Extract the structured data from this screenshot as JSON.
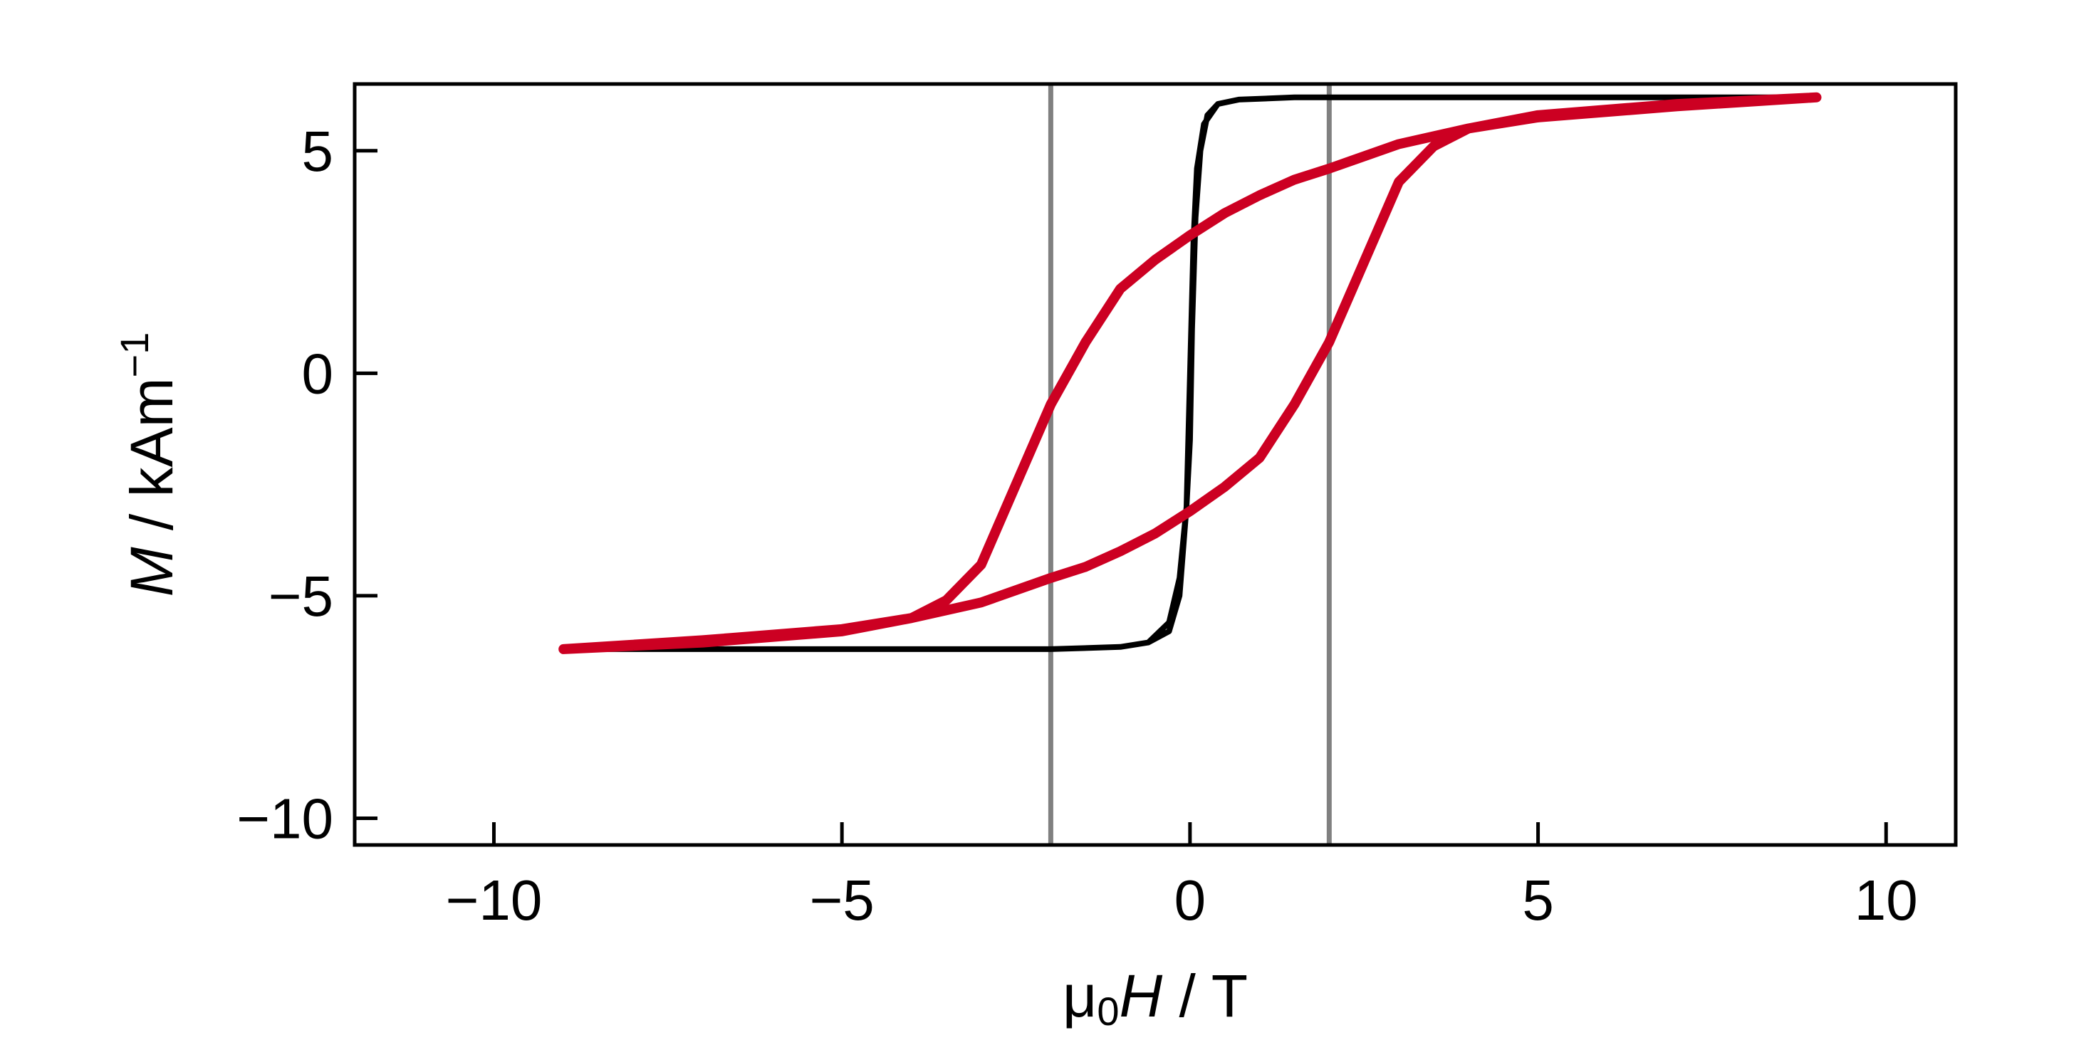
{
  "chart_data": {
    "type": "line",
    "xlabel": {
      "prefix": "μ",
      "sub": "0",
      "var": "H",
      "unit": "T"
    },
    "ylabel": {
      "var": "M",
      "unit": "kAm",
      "sup": "−1"
    },
    "xlim": [
      -12,
      11
    ],
    "ylim": [
      -10.6,
      6.5
    ],
    "xticks": [
      -10,
      -5,
      0,
      5,
      10
    ],
    "xtick_labels": [
      "−10",
      "−5",
      "0",
      "5",
      "10"
    ],
    "yticks": [
      -10,
      -5,
      0,
      5
    ],
    "ytick_labels": [
      "−10",
      "−5",
      "0",
      "5"
    ],
    "grid": false,
    "vlines": [
      {
        "x": -2,
        "color": "#808080"
      },
      {
        "x": 2,
        "color": "#808080"
      }
    ],
    "series": [
      {
        "color": "#000000",
        "x": [
          -9,
          -7,
          -5,
          -3,
          -2,
          -1,
          -0.6,
          -0.3,
          -0.15,
          -0.05,
          0,
          0.05,
          0.1,
          0.2,
          0.4,
          0.7,
          1.5,
          3,
          5,
          7,
          9,
          7,
          5,
          3,
          1.5,
          0.7,
          0.4,
          0.25,
          0.15,
          0.08,
          0.03,
          0,
          -0.05,
          -0.15,
          -0.3,
          -0.6,
          -1,
          -2,
          -3,
          -5,
          -7,
          -9
        ],
        "y": [
          -6.2,
          -6.2,
          -6.2,
          -6.2,
          -6.2,
          -6.15,
          -6.05,
          -5.8,
          -5.0,
          -3.0,
          0.0,
          3.0,
          4.6,
          5.6,
          6.05,
          6.15,
          6.2,
          6.2,
          6.2,
          6.2,
          6.2,
          6.2,
          6.2,
          6.2,
          6.2,
          6.15,
          6.05,
          5.8,
          5.0,
          3.5,
          1.0,
          -1.5,
          -3.0,
          -4.6,
          -5.6,
          -6.05,
          -6.15,
          -6.2,
          -6.2,
          -6.2,
          -6.2,
          -6.2
        ]
      },
      {
        "color": "#cc0022",
        "x": [
          -9,
          -7,
          -5,
          -4,
          -3.5,
          -3,
          -2.5,
          -2,
          -1.5,
          -1,
          -0.5,
          0,
          0.5,
          1,
          1.5,
          2,
          3,
          4,
          5,
          7,
          9,
          7,
          5,
          4,
          3.5,
          3,
          2.5,
          2,
          1.5,
          1,
          0.5,
          0,
          -0.5,
          -1,
          -1.5,
          -2,
          -3,
          -4,
          -5,
          -7,
          -9
        ],
        "y": [
          -6.2,
          -6.05,
          -5.8,
          -5.5,
          -5.1,
          -4.3,
          -2.5,
          -0.7,
          0.7,
          1.9,
          2.55,
          3.1,
          3.6,
          4.0,
          4.35,
          4.6,
          5.15,
          5.5,
          5.75,
          6.0,
          6.2,
          6.05,
          5.8,
          5.5,
          5.1,
          4.3,
          2.5,
          0.7,
          -0.7,
          -1.9,
          -2.55,
          -3.1,
          -3.6,
          -4.0,
          -4.35,
          -4.6,
          -5.15,
          -5.5,
          -5.75,
          -6.0,
          -6.2
        ]
      }
    ]
  }
}
